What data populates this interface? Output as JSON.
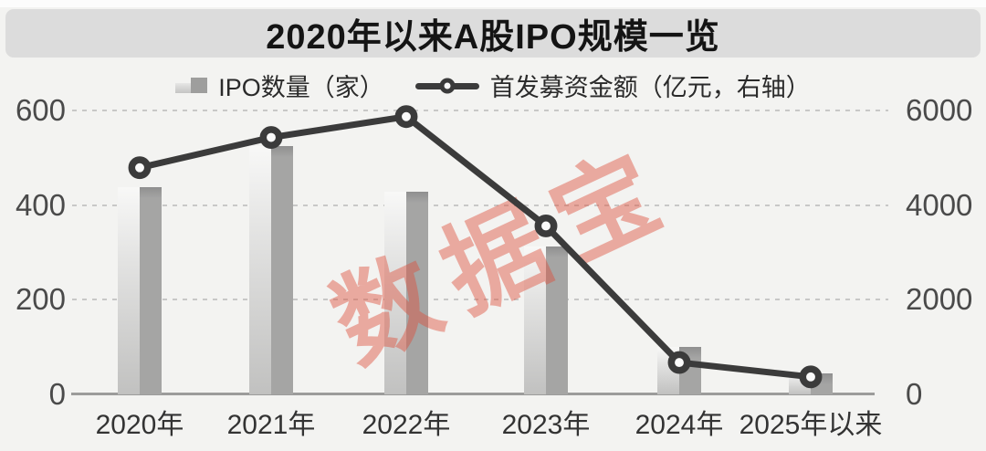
{
  "title": "2020年以来A股IPO规模一览",
  "legend": {
    "bars": "IPO数量（家）",
    "line": "首发募资金额（亿元，右轴）"
  },
  "watermark": "数据宝",
  "colors": {
    "background": "#f3f3f1",
    "banner": "#dcdcdc",
    "line": "#3b3b3b",
    "marker_fill": "#fafafa",
    "bar_light": "#e3e3e2",
    "bar_dark": "#a5a5a4",
    "gridline": "#c8c8c7",
    "watermark": "rgba(221,80,60,0.45)"
  },
  "chart_data": {
    "type": "bar",
    "title": "2020年以来A股IPO规模一览",
    "categories": [
      "2020年",
      "2021年",
      "2022年",
      "2023年",
      "2024年",
      "2025年以来"
    ],
    "series": [
      {
        "name": "IPO数量（家）",
        "type": "bar",
        "axis": "left",
        "values": [
          437,
          524,
          428,
          313,
          100,
          45
        ]
      },
      {
        "name": "首发募资金额（亿元，右轴）",
        "type": "line",
        "axis": "right",
        "values": [
          4790,
          5430,
          5870,
          3560,
          674,
          370
        ]
      }
    ],
    "left_axis": {
      "ticks": [
        0,
        200,
        400,
        600
      ],
      "max": 600,
      "ylim": [
        0,
        600
      ]
    },
    "right_axis": {
      "ticks": [
        0,
        2000,
        4000,
        6000
      ],
      "max": 6000,
      "ylim": [
        0,
        6000
      ]
    },
    "grid": "horizontal dashed lines at left-axis 200/400/600",
    "legend_position": "top-center",
    "xlabel": "",
    "ylabel": ""
  }
}
